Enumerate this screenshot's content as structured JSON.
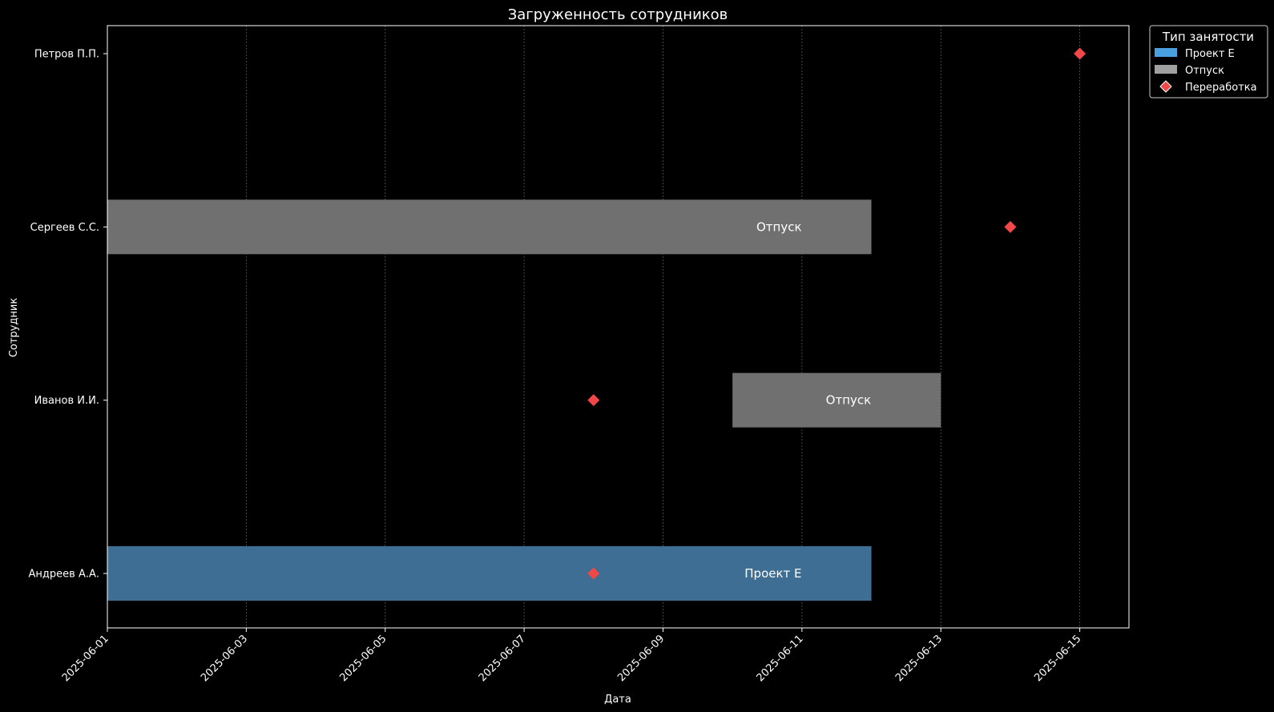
{
  "chart_data": {
    "type": "gantt",
    "title": "Загруженность сотрудников",
    "xlabel": "Дата",
    "ylabel": "Сотрудник",
    "xlim": [
      "2025-06-01",
      "2025-06-15 17:00"
    ],
    "x_ticks": [
      "2025-06-01",
      "2025-06-03",
      "2025-06-05",
      "2025-06-07",
      "2025-06-09",
      "2025-06-11",
      "2025-06-13",
      "2025-06-15"
    ],
    "categories": [
      "Андреев А.А.",
      "Иванов И.И.",
      "Сергеев С.С.",
      "Петров П.П."
    ],
    "grid": "vertical dotted",
    "legend": {
      "title": "Тип занятости",
      "position": "outside top-right",
      "items": [
        {
          "label": "Проект Е",
          "kind": "bar",
          "color": "#4a9fe0"
        },
        {
          "label": "Отпуск",
          "kind": "bar",
          "color": "#a0a0a0"
        },
        {
          "label": "Переработка",
          "kind": "diamond",
          "color": "#f04848"
        }
      ]
    },
    "bars": [
      {
        "employee": "Андреев А.А.",
        "label": "Проект Е",
        "start": "2025-06-01",
        "end": "2025-06-12",
        "color": "#3e6e93"
      },
      {
        "employee": "Сергеев С.С.",
        "label": "Отпуск",
        "start": "2025-06-01",
        "end": "2025-06-12",
        "color": "#707070"
      },
      {
        "employee": "Иванов И.И.",
        "label": "Отпуск",
        "start": "2025-06-10",
        "end": "2025-06-13",
        "color": "#707070"
      }
    ],
    "overtime": [
      {
        "employee": "Андреев А.А.",
        "date": "2025-06-08"
      },
      {
        "employee": "Иванов И.И.",
        "date": "2025-06-08"
      },
      {
        "employee": "Сергеев С.С.",
        "date": "2025-06-14"
      },
      {
        "employee": "Петров П.П.",
        "date": "2025-06-15"
      }
    ]
  }
}
